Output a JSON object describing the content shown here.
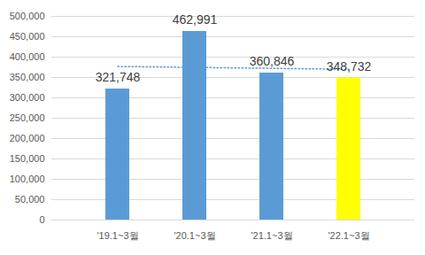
{
  "chart_data": {
    "type": "bar",
    "categories": [
      "'19.1~3월",
      "'20.1~3월",
      "'21.1~3월",
      "'22.1~3월"
    ],
    "values": [
      321748,
      462991,
      360846,
      348732
    ],
    "value_labels": [
      "321,748",
      "462,991",
      "360,846",
      "348,732"
    ],
    "colors": [
      "#5b9bd5",
      "#5b9bd5",
      "#5b9bd5",
      "#ffff00"
    ],
    "trend": [
      377000,
      374700,
      372400,
      370100
    ],
    "data_labels": true,
    "grid": true,
    "ylim": [
      0,
      500000
    ],
    "yticks": [
      0,
      {
        "value": 50000,
        "label": "50,000"
      },
      {
        "value": 100000,
        "label": "100,000"
      },
      {
        "value": 150000,
        "label": "150,000"
      },
      {
        "value": 200000,
        "label": "200,000"
      },
      {
        "value": 250000,
        "label": "250,000"
      },
      {
        "value": 300000,
        "label": "300,000"
      },
      {
        "value": 350000,
        "label": "350,000"
      },
      {
        "value": 400000,
        "label": "400,000"
      },
      {
        "value": 450000,
        "label": "450,000"
      },
      {
        "value": 500000,
        "label": "500,000"
      }
    ]
  }
}
